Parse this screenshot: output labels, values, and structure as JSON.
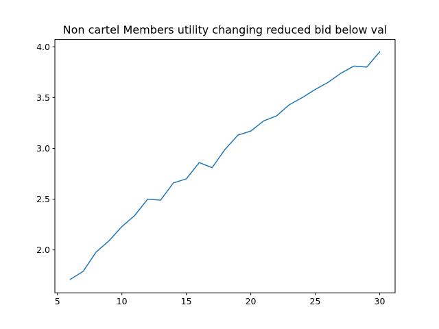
{
  "chart_data": {
    "type": "line",
    "title": "Non cartel Members utility changing reduced bid below val",
    "xlabel": "",
    "ylabel": "",
    "xlim": [
      4.8,
      31.2
    ],
    "ylim": [
      1.578,
      4.072
    ],
    "xticks": [
      5,
      10,
      15,
      20,
      25,
      30
    ],
    "yticks": [
      2.0,
      2.5,
      3.0,
      3.5,
      4.0
    ],
    "xtick_labels": [
      "5",
      "10",
      "15",
      "20",
      "25",
      "30"
    ],
    "ytick_labels": [
      "2.0",
      "2.5",
      "3.0",
      "3.5",
      "4.0"
    ],
    "grid": false,
    "color": "#1f77b4",
    "series": [
      {
        "x": [
          6,
          7,
          8,
          9,
          10,
          11,
          12,
          13,
          14,
          15,
          16,
          17,
          18,
          19,
          20,
          21,
          22,
          23,
          24,
          25,
          26,
          27,
          28,
          29,
          30
        ],
        "values": [
          1.71,
          1.79,
          1.98,
          2.09,
          2.23,
          2.34,
          2.5,
          2.49,
          2.66,
          2.7,
          2.86,
          2.81,
          2.99,
          3.13,
          3.17,
          3.27,
          3.32,
          3.43,
          3.5,
          3.58,
          3.65,
          3.74,
          3.81,
          3.8,
          3.95
        ]
      }
    ]
  }
}
